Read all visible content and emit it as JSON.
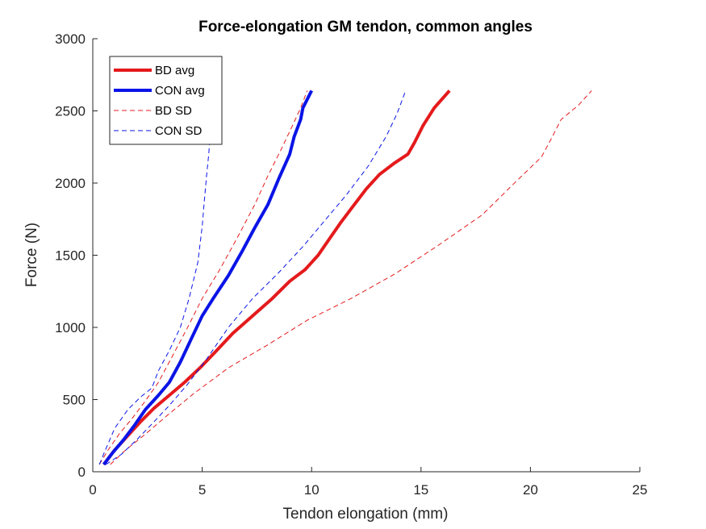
{
  "chart_data": {
    "type": "line",
    "title": "Force-elongation GM tendon, common angles",
    "xlabel": "Tendon elongation (mm)",
    "ylabel": "Force (N)",
    "xlim": [
      0,
      25
    ],
    "ylim": [
      0,
      3000
    ],
    "xticks": [
      0,
      5,
      10,
      15,
      20,
      25
    ],
    "yticks": [
      0,
      500,
      1000,
      1500,
      2000,
      2500,
      3000
    ],
    "grid": false,
    "legend_position": "top-left",
    "series": [
      {
        "name": "BD avg",
        "color": "#e41a1c",
        "style": "solid",
        "width": "thick",
        "x": [
          0.5,
          1.0,
          1.6,
          2.2,
          2.8,
          3.5,
          4.2,
          4.9,
          5.6,
          6.4,
          7.3,
          8.2,
          9.0,
          9.7,
          10.3,
          10.8,
          11.3,
          11.9,
          12.5,
          13.1,
          13.8,
          14.4,
          14.7,
          15.1,
          15.6,
          16.3
        ],
        "y": [
          50,
          150,
          250,
          350,
          440,
          530,
          620,
          720,
          830,
          960,
          1080,
          1200,
          1320,
          1400,
          1500,
          1610,
          1720,
          1840,
          1960,
          2060,
          2140,
          2200,
          2280,
          2400,
          2520,
          2640
        ]
      },
      {
        "name": "CON avg",
        "color": "#0a14e6",
        "style": "solid",
        "width": "thick",
        "x": [
          0.5,
          0.9,
          1.4,
          1.9,
          2.4,
          3.0,
          3.5,
          4.0,
          4.5,
          5.0,
          5.5,
          6.2,
          6.8,
          7.4,
          8.0,
          8.5,
          9.0,
          9.2,
          9.5,
          9.6,
          10.0
        ],
        "y": [
          50,
          130,
          220,
          320,
          430,
          530,
          620,
          760,
          920,
          1080,
          1200,
          1360,
          1520,
          1690,
          1850,
          2030,
          2200,
          2320,
          2440,
          2520,
          2640
        ]
      },
      {
        "name": "BD SD",
        "color": "#e41a1c",
        "style": "dashed",
        "width": "thin",
        "x": [
          0.3,
          0.7,
          1.2,
          1.8,
          2.4,
          3.0,
          3.6,
          4.3,
          5.0,
          5.8,
          6.6,
          7.4,
          8.0,
          8.6,
          9.1,
          9.5,
          9.8
        ],
        "y": [
          50,
          150,
          260,
          370,
          490,
          620,
          790,
          990,
          1200,
          1400,
          1620,
          1850,
          2050,
          2230,
          2390,
          2520,
          2640
        ]
      },
      {
        "name": "BD SD",
        "color": "#e41a1c",
        "style": "dashed",
        "width": "thin",
        "x": [
          0.8,
          1.5,
          2.4,
          3.4,
          4.6,
          6.2,
          8.0,
          9.8,
          11.8,
          13.8,
          15.8,
          17.8,
          19.2,
          20.5,
          21.0,
          21.4,
          22.2,
          22.8
        ],
        "y": [
          50,
          150,
          260,
          390,
          540,
          720,
          880,
          1050,
          1200,
          1370,
          1570,
          1780,
          1990,
          2180,
          2320,
          2440,
          2540,
          2640
        ]
      },
      {
        "name": "CON SD",
        "color": "#0a14e6",
        "style": "dashed",
        "width": "thin",
        "x": [
          0.3,
          0.6,
          1.0,
          1.6,
          2.2,
          2.7,
          3.0,
          3.5,
          4.0,
          4.4,
          4.8,
          5.0,
          5.1,
          5.2,
          5.3,
          5.4,
          5.2
        ],
        "y": [
          50,
          160,
          300,
          430,
          520,
          580,
          700,
          840,
          1000,
          1200,
          1450,
          1700,
          1880,
          2050,
          2200,
          2400,
          2640
        ]
      },
      {
        "name": "CON SD",
        "color": "#0a14e6",
        "style": "dashed",
        "width": "thin",
        "x": [
          0.6,
          1.3,
          2.0,
          2.7,
          3.5,
          4.3,
          5.2,
          6.2,
          7.3,
          8.5,
          9.6,
          10.6,
          11.6,
          12.6,
          13.4,
          13.9,
          14.3
        ],
        "y": [
          50,
          120,
          220,
          330,
          460,
          600,
          780,
          1000,
          1200,
          1380,
          1560,
          1740,
          1920,
          2120,
          2320,
          2480,
          2640
        ]
      }
    ],
    "legend": [
      {
        "label": "BD avg",
        "color": "#e41a1c",
        "style": "solid",
        "width": "thick"
      },
      {
        "label": "CON avg",
        "color": "#0a14e6",
        "style": "solid",
        "width": "thick"
      },
      {
        "label": "BD SD",
        "color": "#e41a1c",
        "style": "dashed",
        "width": "thin"
      },
      {
        "label": "CON SD",
        "color": "#0a14e6",
        "style": "dashed",
        "width": "thin"
      }
    ]
  }
}
